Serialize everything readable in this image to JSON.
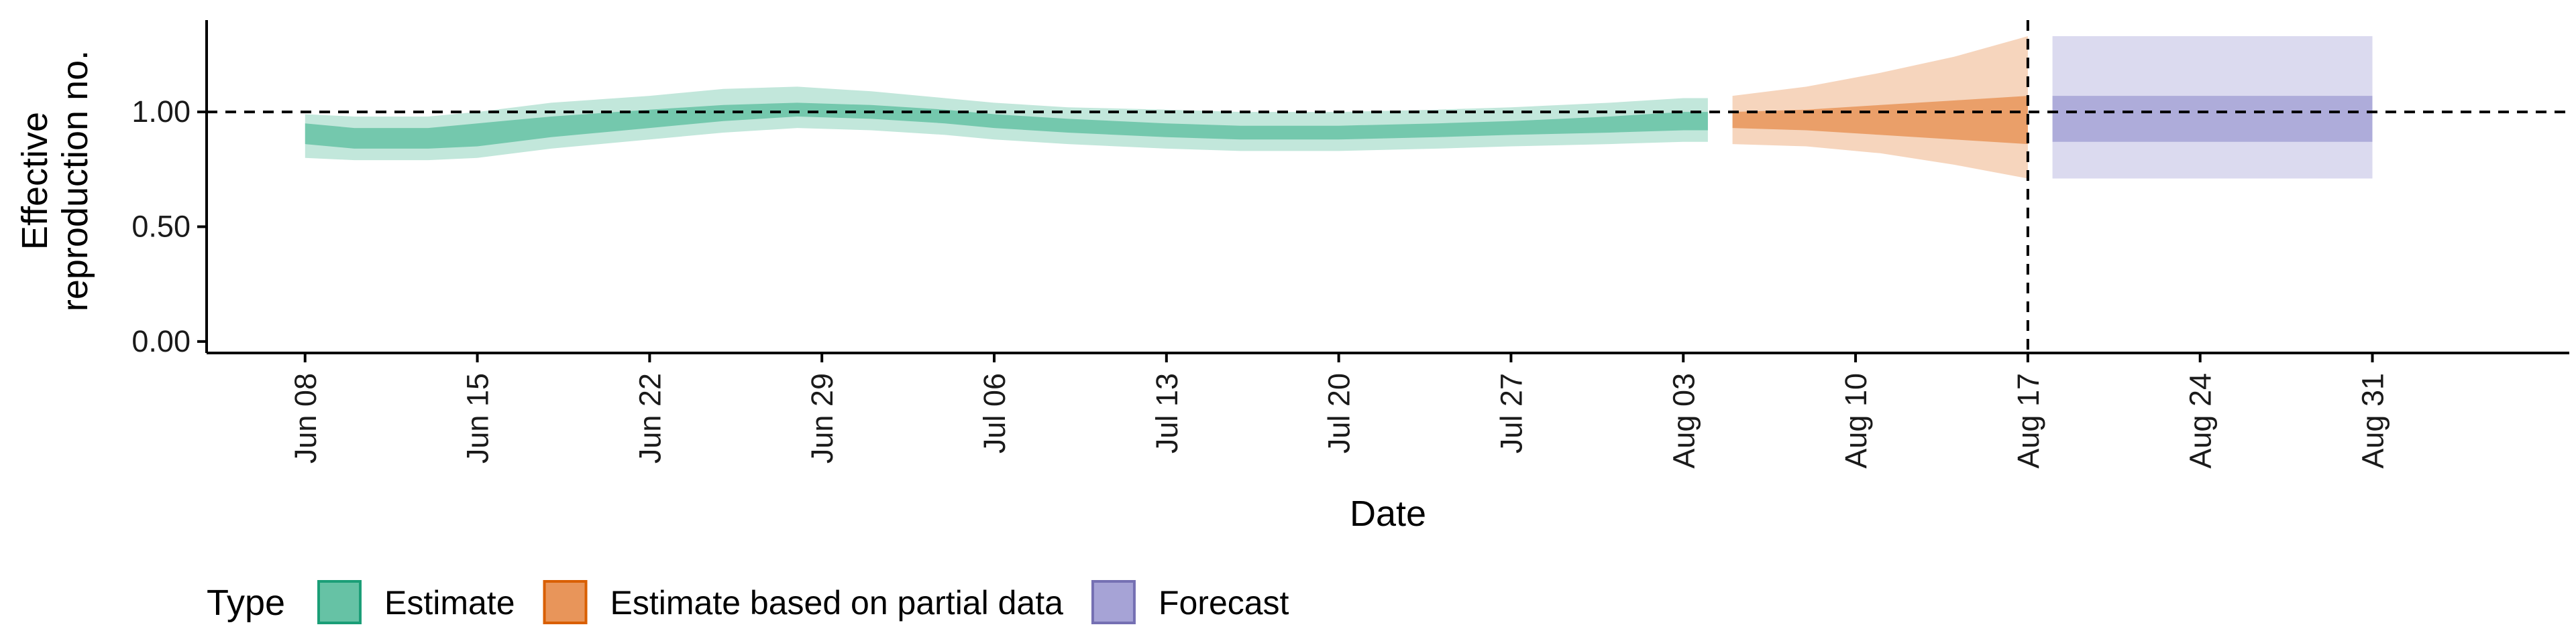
{
  "chart_data": {
    "type": "area",
    "title": "",
    "xlabel": "Date",
    "ylabel": [
      "Effective",
      "reproduction no."
    ],
    "y_ticks": [
      "0.00",
      "0.50",
      "1.00"
    ],
    "ylim": [
      -0.05,
      1.4
    ],
    "x_ticks": [
      "Jun 08",
      "Jun 15",
      "Jun 22",
      "Jun 29",
      "Jul 06",
      "Jul 13",
      "Jul 20",
      "Jul 27",
      "Aug 03",
      "Aug 10",
      "Aug 17",
      "Aug 24",
      "Aug 31"
    ],
    "x_tick_dates": [
      "2020-06-08",
      "2020-06-15",
      "2020-06-22",
      "2020-06-29",
      "2020-07-06",
      "2020-07-13",
      "2020-07-20",
      "2020-07-27",
      "2020-08-03",
      "2020-08-10",
      "2020-08-17",
      "2020-08-24",
      "2020-08-31"
    ],
    "xlim": [
      "2020-06-04",
      "2020-09-08"
    ],
    "reference_lines": {
      "horizontal_y": 1.0,
      "vertical_date": "2020-08-17"
    },
    "grid": false,
    "legend": {
      "title": "Type",
      "position": "bottom",
      "items": [
        {
          "label": "Estimate",
          "fill": "#66c2a5",
          "stroke": "#1b9e77"
        },
        {
          "label": "Estimate based on partial data",
          "fill": "#e8955a",
          "stroke": "#d95f02"
        },
        {
          "label": "Forecast",
          "fill": "#a6a3d6",
          "stroke": "#7570b3"
        }
      ]
    },
    "series": [
      {
        "name": "Estimate",
        "color": "#1b9e77",
        "x": [
          "2020-06-08",
          "2020-06-10",
          "2020-06-13",
          "2020-06-15",
          "2020-06-18",
          "2020-06-22",
          "2020-06-25",
          "2020-06-28",
          "2020-07-01",
          "2020-07-04",
          "2020-07-06",
          "2020-07-09",
          "2020-07-13",
          "2020-07-16",
          "2020-07-20",
          "2020-07-24",
          "2020-07-27",
          "2020-07-31",
          "2020-08-03",
          "2020-08-04"
        ],
        "outer_low": [
          0.8,
          0.79,
          0.79,
          0.8,
          0.84,
          0.88,
          0.91,
          0.93,
          0.92,
          0.9,
          0.88,
          0.86,
          0.84,
          0.83,
          0.83,
          0.84,
          0.85,
          0.86,
          0.87,
          0.87
        ],
        "inner_low": [
          0.86,
          0.84,
          0.84,
          0.85,
          0.89,
          0.93,
          0.96,
          0.98,
          0.97,
          0.95,
          0.93,
          0.91,
          0.89,
          0.88,
          0.88,
          0.89,
          0.9,
          0.91,
          0.92,
          0.92
        ],
        "inner_high": [
          0.95,
          0.93,
          0.93,
          0.95,
          0.98,
          1.01,
          1.03,
          1.04,
          1.03,
          1.01,
          0.99,
          0.97,
          0.95,
          0.94,
          0.94,
          0.95,
          0.96,
          0.98,
          1.0,
          1.0
        ],
        "outer_high": [
          0.99,
          0.98,
          0.98,
          1.0,
          1.04,
          1.07,
          1.1,
          1.11,
          1.09,
          1.06,
          1.04,
          1.02,
          1.01,
          1.0,
          1.0,
          1.01,
          1.02,
          1.04,
          1.06,
          1.06
        ]
      },
      {
        "name": "Estimate based on partial data",
        "color": "#d95f02",
        "x": [
          "2020-08-05",
          "2020-08-08",
          "2020-08-11",
          "2020-08-14",
          "2020-08-17"
        ],
        "outer_low": [
          0.86,
          0.85,
          0.82,
          0.77,
          0.71
        ],
        "inner_low": [
          0.93,
          0.92,
          0.9,
          0.88,
          0.86
        ],
        "inner_high": [
          1.0,
          1.01,
          1.03,
          1.05,
          1.07
        ],
        "outer_high": [
          1.07,
          1.11,
          1.17,
          1.24,
          1.33
        ]
      },
      {
        "name": "Forecast",
        "color": "#7570b3",
        "x": [
          "2020-08-18",
          "2020-08-31"
        ],
        "outer_low": [
          0.71,
          0.71
        ],
        "inner_low": [
          0.87,
          0.87
        ],
        "inner_high": [
          1.07,
          1.07
        ],
        "outer_high": [
          1.33,
          1.33
        ]
      }
    ]
  }
}
